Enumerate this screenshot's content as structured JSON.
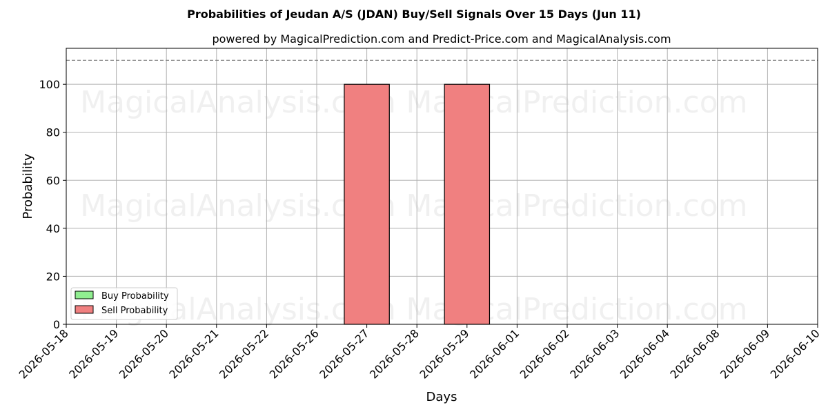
{
  "chart_data": {
    "type": "bar",
    "title": "Probabilities of Jeudan A/S (JDAN) Buy/Sell Signals Over 15 Days (Jun 11)",
    "subtitle": "powered by MagicalPrediction.com and Predict-Price.com and MagicalAnalysis.com",
    "xlabel": "Days",
    "ylabel": "Probability",
    "categories": [
      "2026-05-18",
      "2026-05-19",
      "2026-05-20",
      "2026-05-21",
      "2026-05-22",
      "2026-05-26",
      "2026-05-27",
      "2026-05-28",
      "2026-05-29",
      "2026-06-01",
      "2026-06-02",
      "2026-06-03",
      "2026-06-04",
      "2026-06-08",
      "2026-06-09",
      "2026-06-10"
    ],
    "yticks": [
      "0",
      "20",
      "40",
      "60",
      "80",
      "100"
    ],
    "ylim": [
      0,
      115
    ],
    "reference_line": 110,
    "grid": true,
    "legend_position": "lower-left",
    "series": [
      {
        "name": "Buy Probability",
        "color": "#90ee90",
        "values": [
          0,
          0,
          0,
          0,
          0,
          0,
          0,
          0,
          0,
          0,
          0,
          0,
          0,
          0,
          0,
          0
        ]
      },
      {
        "name": "Sell Probability",
        "color": "#f08080",
        "values": [
          0,
          0,
          0,
          0,
          0,
          0,
          100,
          0,
          100,
          0,
          0,
          0,
          0,
          0,
          0,
          0
        ]
      }
    ],
    "watermarks": [
      "MagicalAnalysis.com",
      "MagicalPrediction.com",
      "MagicalAnalysis.com",
      "MagicalPrediction.com",
      "MagicalAnalysis.com",
      "MagicalPrediction.com"
    ]
  }
}
